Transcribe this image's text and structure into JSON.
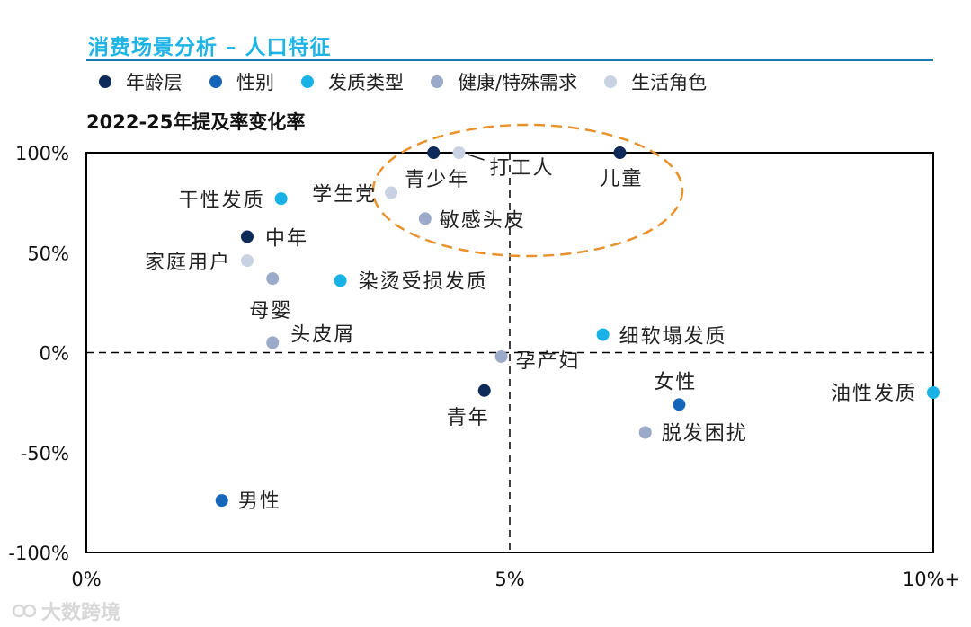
{
  "title": "消费场景分析 – 人口特征",
  "legend": [
    {
      "label": "年龄层",
      "color": "#0d2a5a"
    },
    {
      "label": "性别",
      "color": "#1565b8"
    },
    {
      "label": "发质类型",
      "color": "#19b2e6"
    },
    {
      "label": "健康/特殊需求",
      "color": "#9aaac8"
    },
    {
      "label": "生活角色",
      "color": "#c8d2e2"
    }
  ],
  "watermark": "大数跨境",
  "chart_data": {
    "type": "scatter",
    "title": "2022-25年提及率变化率",
    "xlabel": "",
    "ylabel": "",
    "xlim": [
      0,
      10
    ],
    "ylim": [
      -100,
      100
    ],
    "x_ticks": [
      {
        "value": 0,
        "label": "0%"
      },
      {
        "value": 5,
        "label": "5%"
      },
      {
        "value": 10,
        "label": "10%+"
      }
    ],
    "y_ticks": [
      {
        "value": 100,
        "label": "100%"
      },
      {
        "value": 50,
        "label": "50%"
      },
      {
        "value": 0,
        "label": "0%"
      },
      {
        "value": -50,
        "label": "-50%"
      },
      {
        "value": -100,
        "label": "-100%"
      }
    ],
    "reference_lines": {
      "x": 5,
      "y": 0
    },
    "highlight": "ellipse around 青少年, 打工人, 儿童, 学生党, 敏感头皮",
    "points": [
      {
        "label": "青少年",
        "x": 4.1,
        "y": 100,
        "category": "年龄层"
      },
      {
        "label": "打工人",
        "x": 4.4,
        "y": 100,
        "category": "生活角色"
      },
      {
        "label": "儿童",
        "x": 6.3,
        "y": 100,
        "category": "年龄层"
      },
      {
        "label": "学生党",
        "x": 3.6,
        "y": 80,
        "category": "生活角色"
      },
      {
        "label": "干性发质",
        "x": 2.3,
        "y": 77,
        "category": "发质类型"
      },
      {
        "label": "敏感头皮",
        "x": 4.0,
        "y": 67,
        "category": "健康/特殊需求"
      },
      {
        "label": "中年",
        "x": 1.9,
        "y": 58,
        "category": "年龄层"
      },
      {
        "label": "家庭用户",
        "x": 1.9,
        "y": 46,
        "category": "生活角色"
      },
      {
        "label": "母婴",
        "x": 2.2,
        "y": 37,
        "category": "健康/特殊需求"
      },
      {
        "label": "染烫受损发质",
        "x": 3.0,
        "y": 36,
        "category": "发质类型"
      },
      {
        "label": "头皮屑",
        "x": 2.2,
        "y": 5,
        "category": "健康/特殊需求"
      },
      {
        "label": "细软塌发质",
        "x": 6.1,
        "y": 9,
        "category": "发质类型"
      },
      {
        "label": "孕产妇",
        "x": 4.9,
        "y": -2,
        "category": "健康/特殊需求"
      },
      {
        "label": "青年",
        "x": 4.7,
        "y": -19,
        "category": "年龄层"
      },
      {
        "label": "女性",
        "x": 7.0,
        "y": -26,
        "category": "性别"
      },
      {
        "label": "油性发质",
        "x": 10.0,
        "y": -20,
        "category": "发质类型"
      },
      {
        "label": "脱发困扰",
        "x": 6.6,
        "y": -40,
        "category": "健康/特殊需求"
      },
      {
        "label": "男性",
        "x": 1.6,
        "y": -74,
        "category": "性别"
      }
    ]
  }
}
